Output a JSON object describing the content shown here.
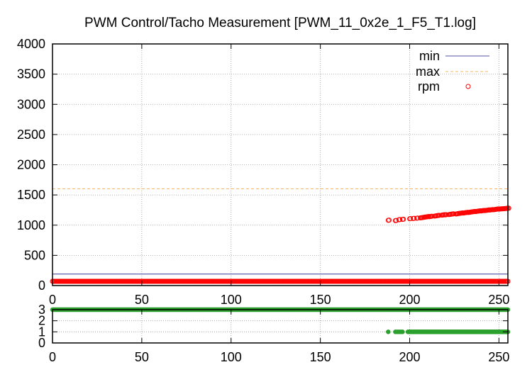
{
  "chart_data": [
    {
      "type": "scatter",
      "title": "PWM Control/Tacho Measurement [PWM_11_0x2e_1_F5_T1.log]",
      "xlabel": "",
      "ylabel": "",
      "xlim": [
        0,
        255
      ],
      "ylim": [
        0,
        4000
      ],
      "x_ticks": [
        0,
        50,
        100,
        150,
        200,
        250
      ],
      "y_ticks": [
        0,
        500,
        1000,
        1500,
        2000,
        2500,
        3000,
        3500,
        4000
      ],
      "grid": true,
      "legend_position": "top-right",
      "series": [
        {
          "name": "min",
          "kind": "line",
          "color": "#1a1a8c",
          "constant": 190
        },
        {
          "name": "max",
          "kind": "dashed-line",
          "color": "#f0a030",
          "constant": 1600
        },
        {
          "name": "rpm",
          "kind": "points",
          "marker": "open-circle",
          "color": "#ff0000",
          "low_band": {
            "x_range": [
              0,
              255
            ],
            "value": 70
          },
          "points": [
            [
              188,
              1080
            ],
            [
              192,
              1075
            ],
            [
              194,
              1090
            ],
            [
              196,
              1095
            ],
            [
              200,
              1105
            ],
            [
              202,
              1110
            ],
            [
              204,
              1115
            ],
            [
              206,
              1120
            ],
            [
              207,
              1125
            ],
            [
              208,
              1130
            ],
            [
              209,
              1135
            ],
            [
              210,
              1140
            ],
            [
              211,
              1140
            ],
            [
              212,
              1145
            ],
            [
              214,
              1150
            ],
            [
              215,
              1155
            ],
            [
              216,
              1160
            ],
            [
              218,
              1165
            ],
            [
              219,
              1170
            ],
            [
              220,
              1170
            ],
            [
              222,
              1175
            ],
            [
              223,
              1180
            ],
            [
              224,
              1185
            ],
            [
              226,
              1185
            ],
            [
              227,
              1190
            ],
            [
              228,
              1195
            ],
            [
              229,
              1200
            ],
            [
              230,
              1200
            ],
            [
              231,
              1205
            ],
            [
              232,
              1210
            ],
            [
              233,
              1210
            ],
            [
              234,
              1215
            ],
            [
              235,
              1220
            ],
            [
              236,
              1225
            ],
            [
              237,
              1225
            ],
            [
              238,
              1230
            ],
            [
              239,
              1235
            ],
            [
              240,
              1235
            ],
            [
              241,
              1240
            ],
            [
              242,
              1240
            ],
            [
              243,
              1245
            ],
            [
              244,
              1250
            ],
            [
              245,
              1250
            ],
            [
              246,
              1255
            ],
            [
              247,
              1255
            ],
            [
              248,
              1260
            ],
            [
              249,
              1265
            ],
            [
              250,
              1265
            ],
            [
              251,
              1268
            ],
            [
              252,
              1270
            ],
            [
              253,
              1272
            ],
            [
              254,
              1275
            ],
            [
              255,
              1278
            ]
          ]
        }
      ]
    },
    {
      "type": "scatter",
      "xlabel": "",
      "ylabel": "",
      "xlim": [
        0,
        255
      ],
      "ylim": [
        0,
        3
      ],
      "x_ticks": [
        0,
        50,
        100,
        150,
        200,
        250
      ],
      "y_ticks": [
        0,
        1,
        2,
        3
      ],
      "grid": true,
      "series": [
        {
          "kind": "points",
          "marker": "filled-circle",
          "color": "#2ca02c",
          "level3_band": {
            "x_range": [
              0,
              255
            ],
            "value": 3
          },
          "level1_band": {
            "x_range": [
              199,
              255
            ],
            "value": 1
          },
          "level1_points": [
            188,
            192,
            193,
            194,
            195,
            196
          ]
        }
      ]
    }
  ]
}
